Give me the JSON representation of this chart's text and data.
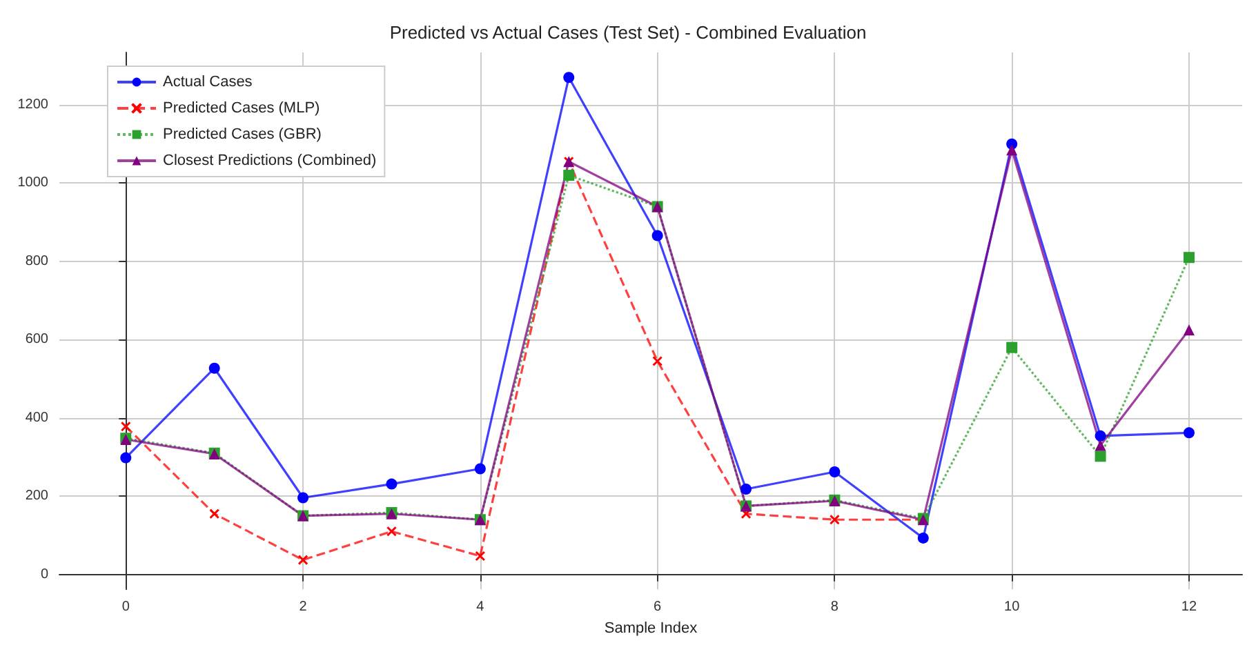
{
  "chart_data": {
    "type": "line",
    "title": "Predicted vs Actual Cases (Test Set) - Combined Evaluation",
    "xlabel": "Sample Index",
    "x": [
      0,
      1,
      2,
      3,
      4,
      5,
      6,
      7,
      8,
      9,
      10,
      11,
      12
    ],
    "series": [
      {
        "name": "Actual Cases",
        "color": "#0000ff",
        "marker": "circle",
        "line_style": "solid",
        "values": [
          298,
          527,
          196,
          231,
          270,
          1270,
          866,
          218,
          262,
          93,
          1100,
          354,
          362
        ]
      },
      {
        "name": "Predicted Cases (MLP)",
        "color": "#ff0000",
        "marker": "cross",
        "line_style": "dashed",
        "values": [
          378,
          155,
          37,
          110,
          47,
          1055,
          545,
          155,
          140,
          140,
          null,
          null,
          null
        ]
      },
      {
        "name": "Predicted Cases (GBR)",
        "color": "#2ca02c",
        "marker": "square",
        "line_style": "dotted",
        "values": [
          348,
          310,
          150,
          158,
          140,
          1020,
          940,
          175,
          190,
          143,
          580,
          302,
          810
        ]
      },
      {
        "name": "Closest Predictions (Combined)",
        "color": "#800080",
        "marker": "triangle",
        "line_style": "solid",
        "values": [
          345,
          308,
          150,
          155,
          140,
          1055,
          940,
          175,
          188,
          140,
          1085,
          330,
          625
        ]
      }
    ],
    "xlim": [
      -0.75,
      12.6
    ],
    "ylim": [
      -38,
      1334
    ],
    "xticks": [
      0,
      2,
      4,
      6,
      8,
      10,
      12
    ],
    "yticks": [
      0,
      200,
      400,
      600,
      800,
      1000,
      1200
    ],
    "grid": true,
    "legend": "top left"
  }
}
